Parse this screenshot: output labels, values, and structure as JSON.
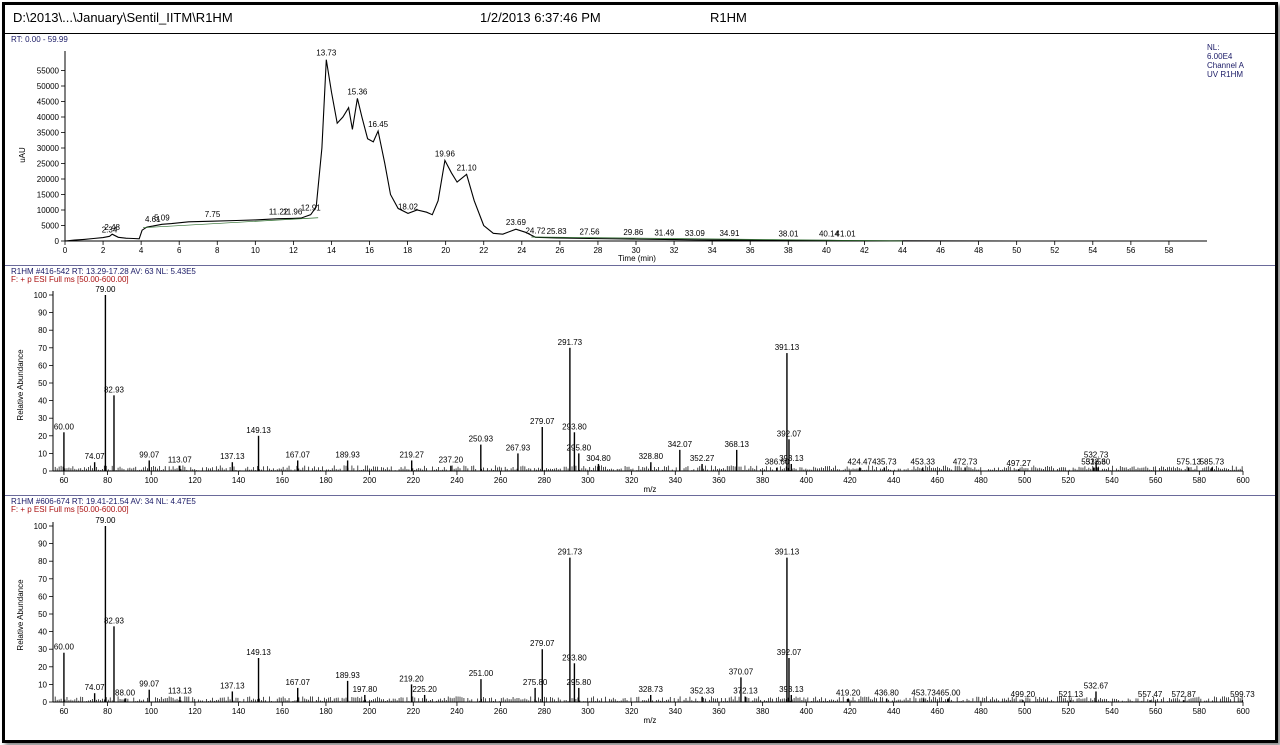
{
  "header": {
    "file_path": "D:\\2013\\...\\January\\Sentil_IITM\\R1HM",
    "timestamp": "1/2/2013 6:37:46 PM",
    "sample_name": "R1HM"
  },
  "colors": {
    "trace": "#000000",
    "baseline": "#2a6a2a",
    "header_blue": "#1a1a66",
    "header_red": "#aa1111"
  },
  "chart_data": [
    {
      "type": "line",
      "header_line": "RT: 0.00 - 59.99",
      "info_lines": [
        "NL:",
        "6.00E4",
        "Channel A",
        "UV R1HM"
      ],
      "xlabel": "Time (min)",
      "ylabel": "uAU",
      "xlim": [
        0,
        60
      ],
      "ylim": [
        0,
        60000
      ],
      "xticks": [
        0,
        2,
        4,
        6,
        8,
        10,
        12,
        14,
        16,
        18,
        20,
        22,
        24,
        26,
        28,
        30,
        32,
        34,
        36,
        38,
        40,
        42,
        44,
        46,
        48,
        50,
        52,
        54,
        56,
        58
      ],
      "yticks": [
        0,
        5000,
        10000,
        15000,
        20000,
        25000,
        30000,
        35000,
        40000,
        45000,
        50000,
        55000
      ],
      "series": [
        {
          "x": [
            0,
            0.5,
            1,
            1.5,
            2,
            2.34,
            2.48,
            2.8,
            3.2,
            3.6,
            3.9,
            4.05,
            4.3,
            4.61,
            5.09,
            5.6,
            6.5,
            7.75,
            9,
            10,
            11.22,
            11.96,
            12.4,
            12.91,
            13.2,
            13.5,
            13.73,
            14,
            14.3,
            14.6,
            14.9,
            15.1,
            15.36,
            15.6,
            15.9,
            16.2,
            16.45,
            16.8,
            17.1,
            17.5,
            18.02,
            18.5,
            19,
            19.3,
            19.6,
            19.96,
            20.3,
            20.6,
            21.1,
            21.5,
            22,
            22.5,
            23,
            23.69,
            24.2,
            24.72,
            25.83,
            27.56,
            29.86,
            31.49,
            33.09,
            34.91,
            38.01,
            40.14,
            41.01,
            44,
            50,
            60
          ],
          "y": [
            0,
            300,
            500,
            800,
            1100,
            1500,
            2200,
            1200,
            900,
            800,
            700,
            3500,
            4500,
            4800,
            5400,
            5600,
            6200,
            6400,
            6600,
            6800,
            7200,
            7300,
            7400,
            8500,
            11000,
            30000,
            58500,
            48000,
            38000,
            40000,
            43000,
            36000,
            46000,
            40000,
            33000,
            32000,
            35500,
            25000,
            15000,
            10500,
            8900,
            10000,
            9300,
            8500,
            13000,
            26000,
            22000,
            19000,
            21500,
            13000,
            5000,
            2500,
            2200,
            3800,
            2800,
            1200,
            1000,
            800,
            600,
            500,
            400,
            300,
            200,
            200,
            100,
            50,
            0,
            0
          ]
        }
      ],
      "peaks": [
        {
          "x": 2.34,
          "label": "2.34",
          "y": 1500
        },
        {
          "x": 2.48,
          "label": "2.48",
          "y": 2200
        },
        {
          "x": 4.61,
          "label": "4.61",
          "y": 4800
        },
        {
          "x": 5.09,
          "label": "5.09",
          "y": 5400
        },
        {
          "x": 7.75,
          "label": "7.75",
          "y": 6400
        },
        {
          "x": 11.22,
          "label": "11.22",
          "y": 7200
        },
        {
          "x": 11.96,
          "label": "11.96",
          "y": 7300
        },
        {
          "x": 12.91,
          "label": "12.91",
          "y": 8500
        },
        {
          "x": 13.73,
          "label": "13.73",
          "y": 58500
        },
        {
          "x": 15.36,
          "label": "15.36",
          "y": 46000
        },
        {
          "x": 16.45,
          "label": "16.45",
          "y": 35500
        },
        {
          "x": 18.02,
          "label": "18.02",
          "y": 8900
        },
        {
          "x": 19.96,
          "label": "19.96",
          "y": 26000
        },
        {
          "x": 21.1,
          "label": "21.10",
          "y": 21500
        },
        {
          "x": 23.69,
          "label": "23.69",
          "y": 3800
        },
        {
          "x": 24.72,
          "label": "24.72",
          "y": 1200
        },
        {
          "x": 25.83,
          "label": "25.83",
          "y": 1000
        },
        {
          "x": 27.56,
          "label": "27.56",
          "y": 800
        },
        {
          "x": 29.86,
          "label": "29.86",
          "y": 600
        },
        {
          "x": 31.49,
          "label": "31.49",
          "y": 500
        },
        {
          "x": 33.09,
          "label": "33.09",
          "y": 400
        },
        {
          "x": 34.91,
          "label": "34.91",
          "y": 300
        },
        {
          "x": 38.01,
          "label": "38.01",
          "y": 200
        },
        {
          "x": 40.14,
          "label": "40.14",
          "y": 200
        },
        {
          "x": 41.01,
          "label": "41.01",
          "y": 100
        }
      ]
    },
    {
      "type": "bar",
      "header_line": "R1HM #416-542   RT: 13.29-17.28   AV: 63   NL: 5.43E5",
      "filter_line": "F: + p ESI Full ms [50.00-600.00]",
      "xlabel": "m/z",
      "ylabel": "Relative Abundance",
      "xlim": [
        55,
        600
      ],
      "ylim": [
        0,
        100
      ],
      "xticks": [
        60,
        80,
        100,
        120,
        140,
        160,
        180,
        200,
        220,
        240,
        260,
        280,
        300,
        320,
        340,
        360,
        380,
        400,
        420,
        440,
        460,
        480,
        500,
        520,
        540,
        560,
        580,
        600
      ],
      "yticks": [
        0,
        10,
        20,
        30,
        40,
        50,
        60,
        70,
        80,
        90,
        100
      ],
      "peaks": [
        {
          "mz": 60.0,
          "rel": 22,
          "label": "60.00"
        },
        {
          "mz": 74.07,
          "rel": 5,
          "label": "74.07"
        },
        {
          "mz": 79.0,
          "rel": 100,
          "label": "79.00"
        },
        {
          "mz": 82.93,
          "rel": 43,
          "label": "82.93"
        },
        {
          "mz": 99.07,
          "rel": 6,
          "label": "99.07"
        },
        {
          "mz": 113.07,
          "rel": 3,
          "label": "113.07"
        },
        {
          "mz": 137.13,
          "rel": 5,
          "label": "137.13"
        },
        {
          "mz": 149.13,
          "rel": 20,
          "label": "149.13"
        },
        {
          "mz": 167.07,
          "rel": 6,
          "label": "167.07"
        },
        {
          "mz": 189.93,
          "rel": 6,
          "label": "189.93"
        },
        {
          "mz": 219.27,
          "rel": 6,
          "label": "219.27"
        },
        {
          "mz": 237.2,
          "rel": 3,
          "label": "237.20"
        },
        {
          "mz": 250.93,
          "rel": 15,
          "label": "250.93"
        },
        {
          "mz": 267.93,
          "rel": 10,
          "label": "267.93"
        },
        {
          "mz": 279.07,
          "rel": 25,
          "label": "279.07"
        },
        {
          "mz": 291.73,
          "rel": 70,
          "label": "291.73"
        },
        {
          "mz": 293.8,
          "rel": 22,
          "label": "293.80"
        },
        {
          "mz": 295.8,
          "rel": 10,
          "label": "295.80"
        },
        {
          "mz": 304.8,
          "rel": 4,
          "label": "304.80"
        },
        {
          "mz": 328.8,
          "rel": 5,
          "label": "328.80"
        },
        {
          "mz": 342.07,
          "rel": 12,
          "label": "342.07"
        },
        {
          "mz": 352.27,
          "rel": 4,
          "label": "352.27"
        },
        {
          "mz": 368.13,
          "rel": 12,
          "label": "368.13"
        },
        {
          "mz": 386.6,
          "rel": 2,
          "label": "386.60"
        },
        {
          "mz": 391.13,
          "rel": 67,
          "label": "391.13"
        },
        {
          "mz": 392.07,
          "rel": 18,
          "label": "392.07"
        },
        {
          "mz": 393.13,
          "rel": 4,
          "label": "393.13"
        },
        {
          "mz": 424.47,
          "rel": 2,
          "label": "424.47"
        },
        {
          "mz": 435.73,
          "rel": 2,
          "label": "435.73"
        },
        {
          "mz": 453.33,
          "rel": 2,
          "label": "453.33"
        },
        {
          "mz": 472.73,
          "rel": 2,
          "label": "472.73"
        },
        {
          "mz": 497.27,
          "rel": 1,
          "label": "497.27"
        },
        {
          "mz": 531.53,
          "rel": 2,
          "label": "531.53"
        },
        {
          "mz": 532.73,
          "rel": 6,
          "label": "532.73"
        },
        {
          "mz": 533.6,
          "rel": 2,
          "label": "533.60"
        },
        {
          "mz": 575.13,
          "rel": 2,
          "label": "575.13"
        },
        {
          "mz": 585.73,
          "rel": 2,
          "label": "585.73"
        }
      ]
    },
    {
      "type": "bar",
      "header_line": "R1HM #606-674   RT: 19.41-21.54   AV: 34   NL: 4.47E5",
      "filter_line": "F: + p ESI Full ms [50.00-600.00]",
      "xlabel": "m/z",
      "ylabel": "Relative Abundance",
      "xlim": [
        55,
        600
      ],
      "ylim": [
        0,
        100
      ],
      "xticks": [
        60,
        80,
        100,
        120,
        140,
        160,
        180,
        200,
        220,
        240,
        260,
        280,
        300,
        320,
        340,
        360,
        380,
        400,
        420,
        440,
        460,
        480,
        500,
        520,
        540,
        560,
        580,
        600
      ],
      "yticks": [
        0,
        10,
        20,
        30,
        40,
        50,
        60,
        70,
        80,
        90,
        100
      ],
      "peaks": [
        {
          "mz": 60.0,
          "rel": 28,
          "label": "60.00"
        },
        {
          "mz": 74.07,
          "rel": 5,
          "label": "74.07"
        },
        {
          "mz": 79.0,
          "rel": 100,
          "label": "79.00"
        },
        {
          "mz": 82.93,
          "rel": 43,
          "label": "82.93"
        },
        {
          "mz": 88.0,
          "rel": 2,
          "label": "88.00"
        },
        {
          "mz": 99.07,
          "rel": 7,
          "label": "99.07"
        },
        {
          "mz": 113.13,
          "rel": 3,
          "label": "113.13"
        },
        {
          "mz": 137.13,
          "rel": 6,
          "label": "137.13"
        },
        {
          "mz": 149.13,
          "rel": 25,
          "label": "149.13"
        },
        {
          "mz": 167.07,
          "rel": 8,
          "label": "167.07"
        },
        {
          "mz": 189.93,
          "rel": 12,
          "label": "189.93"
        },
        {
          "mz": 197.8,
          "rel": 4,
          "label": "197.80"
        },
        {
          "mz": 219.2,
          "rel": 10,
          "label": "219.20"
        },
        {
          "mz": 225.2,
          "rel": 4,
          "label": "225.20"
        },
        {
          "mz": 251.0,
          "rel": 13,
          "label": "251.00"
        },
        {
          "mz": 275.8,
          "rel": 8,
          "label": "275.80"
        },
        {
          "mz": 279.07,
          "rel": 30,
          "label": "279.07"
        },
        {
          "mz": 291.73,
          "rel": 82,
          "label": "291.73"
        },
        {
          "mz": 293.8,
          "rel": 22,
          "label": "293.80"
        },
        {
          "mz": 295.8,
          "rel": 8,
          "label": "295.80"
        },
        {
          "mz": 328.73,
          "rel": 4,
          "label": "328.73"
        },
        {
          "mz": 352.33,
          "rel": 3,
          "label": "352.33"
        },
        {
          "mz": 370.07,
          "rel": 14,
          "label": "370.07"
        },
        {
          "mz": 372.13,
          "rel": 3,
          "label": "372.13"
        },
        {
          "mz": 391.13,
          "rel": 82,
          "label": "391.13"
        },
        {
          "mz": 392.07,
          "rel": 25,
          "label": "392.07"
        },
        {
          "mz": 393.13,
          "rel": 4,
          "label": "393.13"
        },
        {
          "mz": 419.2,
          "rel": 2,
          "label": "419.20"
        },
        {
          "mz": 436.8,
          "rel": 2,
          "label": "436.80"
        },
        {
          "mz": 453.73,
          "rel": 2,
          "label": "453.73"
        },
        {
          "mz": 465.0,
          "rel": 2,
          "label": "465.00"
        },
        {
          "mz": 499.2,
          "rel": 1,
          "label": "499.20"
        },
        {
          "mz": 521.13,
          "rel": 1,
          "label": "521.13"
        },
        {
          "mz": 532.67,
          "rel": 6,
          "label": "532.67"
        },
        {
          "mz": 557.47,
          "rel": 1,
          "label": "557.47"
        },
        {
          "mz": 572.87,
          "rel": 1,
          "label": "572.87"
        },
        {
          "mz": 599.73,
          "rel": 1,
          "label": "599.73"
        }
      ]
    }
  ]
}
